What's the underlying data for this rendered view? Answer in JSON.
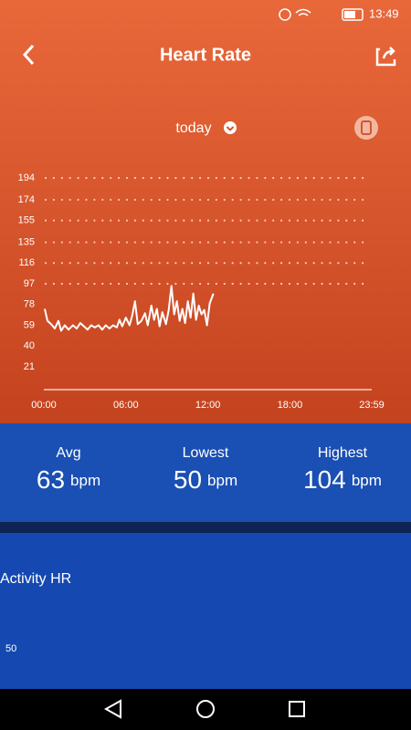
{
  "status_bar": {
    "time": "13:49"
  },
  "header": {
    "title": "Heart Rate",
    "period": "today"
  },
  "chart_data": {
    "type": "line",
    "x": [
      4,
      16,
      32,
      48,
      64,
      76,
      92,
      108,
      128,
      144,
      160,
      176,
      192,
      208,
      224,
      240,
      256,
      272,
      288,
      304,
      320,
      332,
      344,
      360,
      376,
      388,
      400,
      412,
      428,
      444,
      456,
      472,
      484,
      496,
      508,
      520,
      536,
      548,
      560,
      572,
      584,
      596,
      608,
      620,
      632,
      644,
      656,
      668,
      680,
      692,
      704,
      716,
      728,
      744
    ],
    "series": [
      {
        "color": "#ffffff",
        "values": [
          74,
          63,
          60,
          56,
          63,
          54,
          59,
          55,
          59,
          56,
          61,
          58,
          55,
          59,
          57,
          59,
          55,
          59,
          56,
          59,
          57,
          64,
          58,
          66,
          59,
          68,
          81,
          60,
          63,
          70,
          59,
          77,
          64,
          74,
          58,
          71,
          60,
          73,
          95,
          69,
          81,
          63,
          74,
          61,
          81,
          66,
          88,
          64,
          77,
          69,
          73,
          59,
          79,
          88
        ]
      }
    ],
    "xlim": [
      0,
      1439
    ],
    "xticks": [
      {
        "value": 0,
        "label": "00:00"
      },
      {
        "value": 360,
        "label": "06:00"
      },
      {
        "value": 720,
        "label": "12:00"
      },
      {
        "value": 1080,
        "label": "18:00"
      },
      {
        "value": 1439,
        "label": "23:59"
      }
    ],
    "ylim": [
      0,
      194
    ],
    "yticks": [
      21,
      40,
      59,
      78,
      97,
      116,
      135,
      155,
      174,
      194
    ],
    "grid": true
  },
  "stats": [
    {
      "label": "Avg",
      "value": "63",
      "unit": "bpm"
    },
    {
      "label": "Lowest",
      "value": "50",
      "unit": "bpm"
    },
    {
      "label": "Highest",
      "value": "104",
      "unit": "bpm"
    }
  ],
  "activity": {
    "title": "Activity HR",
    "axis_label": "50"
  }
}
